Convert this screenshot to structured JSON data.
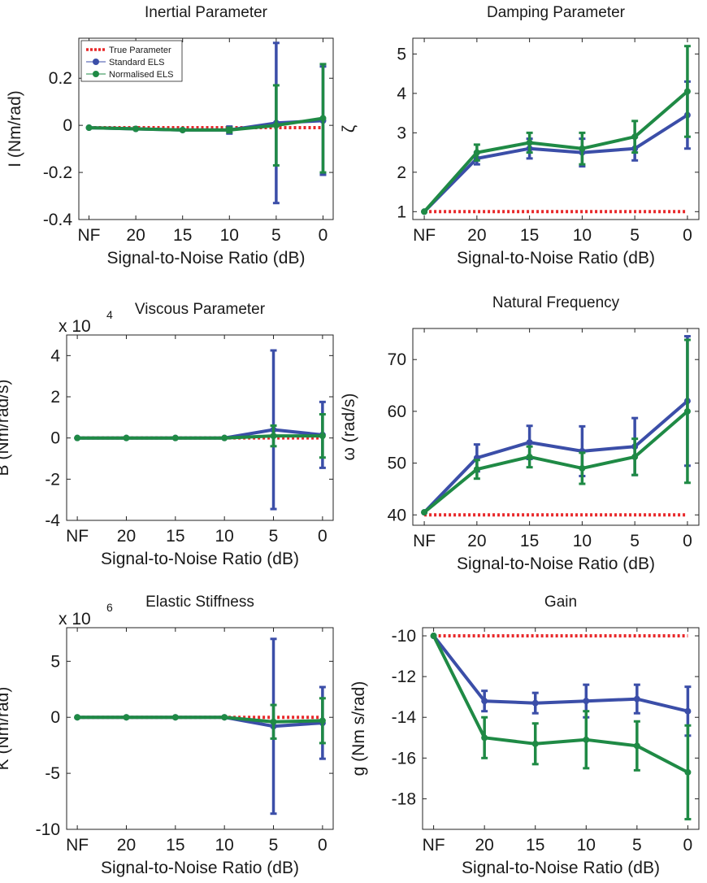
{
  "legend": {
    "entries": [
      {
        "label": "True Parameter",
        "style": "dotted",
        "color": "#e8282a"
      },
      {
        "label": "Standard ELS",
        "style": "line-marker",
        "color": "#3b4ea8"
      },
      {
        "label": "Normalised ELS",
        "style": "line-marker",
        "color": "#1f8a45"
      }
    ]
  },
  "colors": {
    "true": "#e8282a",
    "standard": "#3b4ea8",
    "normalised": "#1f8a45"
  },
  "chart_data": [
    {
      "type": "line",
      "title": "Inertial Parameter",
      "xlabel": "Signal-to-Noise Ratio (dB)",
      "ylabel": "I (Nm/rad)",
      "multiplier": "",
      "multiplier_exp": "",
      "categories": [
        "NF",
        "20",
        "15",
        "10",
        "5",
        "0"
      ],
      "ylim": [
        -0.4,
        0.37
      ],
      "yticks": [
        0.2,
        0,
        -0.2,
        -0.4
      ],
      "yticklabels": [
        "0.2",
        "0",
        "-0.2",
        "-0.4"
      ],
      "true_value": -0.01,
      "legend": true,
      "series": [
        {
          "name": "Standard ELS",
          "values": [
            -0.01,
            -0.015,
            -0.02,
            -0.02,
            0.01,
            0.02
          ],
          "err": [
            0,
            0,
            0,
            0.015,
            0.34,
            0.23
          ]
        },
        {
          "name": "Normalised ELS",
          "values": [
            -0.01,
            -0.015,
            -0.02,
            -0.02,
            0.0,
            0.03
          ],
          "err": [
            0,
            0,
            0,
            0.01,
            0.17,
            0.23
          ]
        }
      ]
    },
    {
      "type": "line",
      "title": "Damping Parameter",
      "xlabel": "Signal-to-Noise Ratio (dB)",
      "ylabel": "ζ",
      "multiplier": "",
      "multiplier_exp": "",
      "categories": [
        "NF",
        "20",
        "15",
        "10",
        "5",
        "0"
      ],
      "ylim": [
        0.8,
        5.4
      ],
      "yticks": [
        5,
        4,
        3,
        2,
        1
      ],
      "yticklabels": [
        "5",
        "4",
        "3",
        "2",
        "1"
      ],
      "true_value": 1,
      "legend": false,
      "series": [
        {
          "name": "Standard ELS",
          "values": [
            1,
            2.35,
            2.6,
            2.5,
            2.6,
            3.45
          ],
          "err": [
            0,
            0.15,
            0.25,
            0.35,
            0.3,
            0.85
          ]
        },
        {
          "name": "Normalised ELS",
          "values": [
            1,
            2.5,
            2.75,
            2.6,
            2.9,
            4.05
          ],
          "err": [
            0,
            0.2,
            0.25,
            0.4,
            0.4,
            1.15
          ]
        }
      ]
    },
    {
      "type": "line",
      "title": "Viscous Parameter",
      "xlabel": "Signal-to-Noise Ratio (dB)",
      "ylabel": "B (Nm/rad/s)",
      "multiplier": "x 10",
      "multiplier_exp": "4",
      "categories": [
        "NF",
        "20",
        "15",
        "10",
        "5",
        "0"
      ],
      "ylim": [
        -4,
        5
      ],
      "yticks": [
        4,
        2,
        0,
        -2,
        -4
      ],
      "yticklabels": [
        "4",
        "2",
        "0",
        "-2",
        "-4"
      ],
      "true_value": 0,
      "legend": false,
      "series": [
        {
          "name": "Standard ELS",
          "values": [
            0,
            0,
            0,
            0,
            0.4,
            0.15
          ],
          "err": [
            0,
            0,
            0,
            0,
            3.85,
            1.6
          ]
        },
        {
          "name": "Normalised ELS",
          "values": [
            0,
            0,
            0,
            0,
            0.1,
            0.1
          ],
          "err": [
            0,
            0,
            0,
            0,
            0.5,
            1.05
          ]
        }
      ]
    },
    {
      "type": "line",
      "title": "Natural Frequency",
      "xlabel": "Signal-to-Noise Ratio (dB)",
      "ylabel": "ω (rad/s)",
      "multiplier": "",
      "multiplier_exp": "",
      "categories": [
        "NF",
        "20",
        "15",
        "10",
        "5",
        "0"
      ],
      "ylim": [
        38,
        76
      ],
      "yticks": [
        70,
        60,
        50,
        40
      ],
      "yticklabels": [
        "70",
        "60",
        "50",
        "40"
      ],
      "true_value": 40,
      "legend": false,
      "series": [
        {
          "name": "Standard ELS",
          "values": [
            40.5,
            51,
            54,
            52.3,
            53.2,
            62
          ],
          "err": [
            0,
            2.6,
            3.2,
            4.8,
            5.5,
            12.5
          ]
        },
        {
          "name": "Normalised ELS",
          "values": [
            40.5,
            48.8,
            51.2,
            49,
            51.2,
            60
          ],
          "err": [
            0,
            1.8,
            2,
            3,
            3.5,
            13.8
          ]
        }
      ]
    },
    {
      "type": "line",
      "title": "Elastic Stiffness",
      "xlabel": "Signal-to-Noise Ratio (dB)",
      "ylabel": "K (Nm/rad)",
      "multiplier": "x 10",
      "multiplier_exp": "6",
      "categories": [
        "NF",
        "20",
        "15",
        "10",
        "5",
        "0"
      ],
      "ylim": [
        -10,
        8
      ],
      "yticks": [
        5,
        0,
        -5,
        -10
      ],
      "yticklabels": [
        "5",
        "0",
        "-5",
        "-10"
      ],
      "true_value": 0,
      "legend": false,
      "series": [
        {
          "name": "Standard ELS",
          "values": [
            0,
            0,
            0,
            0,
            -0.8,
            -0.5
          ],
          "err": [
            0,
            0,
            0,
            0,
            7.8,
            3.2
          ]
        },
        {
          "name": "Normalised ELS",
          "values": [
            0,
            0,
            0,
            0,
            -0.4,
            -0.3
          ],
          "err": [
            0,
            0,
            0,
            0,
            1.5,
            2.0
          ]
        }
      ]
    },
    {
      "type": "line",
      "title": "Gain",
      "xlabel": "Signal-to-Noise Ratio (dB)",
      "ylabel": "g (Nm s/rad)",
      "multiplier": "",
      "multiplier_exp": "",
      "categories": [
        "NF",
        "20",
        "15",
        "10",
        "5",
        "0"
      ],
      "ylim": [
        -19.5,
        -9.6
      ],
      "yticks": [
        -10,
        -12,
        -14,
        -16,
        -18
      ],
      "yticklabels": [
        "-10",
        "-12",
        "-14",
        "-16",
        "-18"
      ],
      "true_value": -10,
      "legend": false,
      "series": [
        {
          "name": "Standard ELS",
          "values": [
            -10,
            -13.2,
            -13.3,
            -13.2,
            -13.1,
            -13.7
          ],
          "err": [
            0,
            0.5,
            0.5,
            0.8,
            0.7,
            1.2
          ]
        },
        {
          "name": "Normalised ELS",
          "values": [
            -10,
            -15,
            -15.3,
            -15.1,
            -15.4,
            -16.7
          ],
          "err": [
            0,
            1.0,
            1.0,
            1.4,
            1.2,
            2.3
          ]
        }
      ]
    }
  ]
}
